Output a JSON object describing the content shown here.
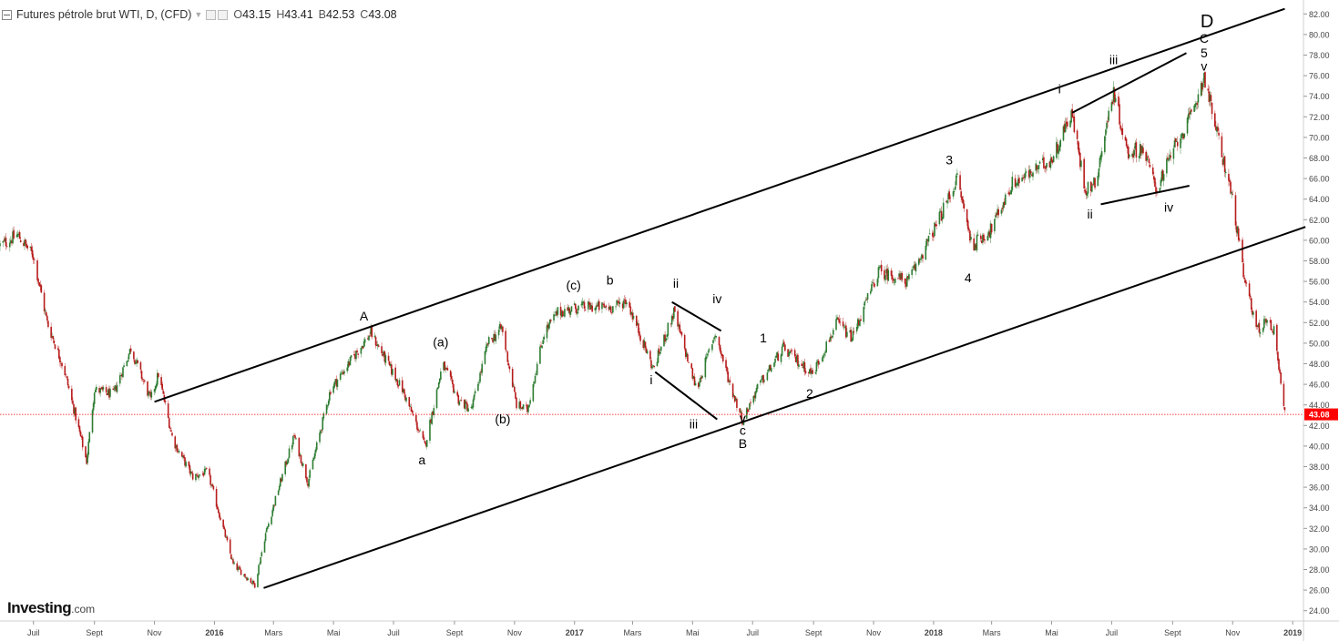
{
  "header": {
    "symbol_title": "Futures pétrole brut WTI, D, (CFD)",
    "ohlc": [
      {
        "key": "O",
        "value": "43.15"
      },
      {
        "key": "H",
        "value": "43.41"
      },
      {
        "key": "B",
        "value": "42.53"
      },
      {
        "key": "C",
        "value": "43.08"
      }
    ]
  },
  "logo": {
    "brand": "Investing",
    "suffix": ".com"
  },
  "colors": {
    "up_candle": "#2e7d32",
    "down_candle": "#b71c1c",
    "price_line": "#ff0000",
    "price_badge": "#ff0000",
    "trend_lines": "#000000",
    "axis_text": "#444444"
  },
  "chart_data": {
    "type": "candlestick",
    "instrument": "Futures pétrole brut WTI",
    "interval": "D",
    "y_axis": {
      "position": "right",
      "range": [
        23,
        83
      ],
      "ticks": [
        "24.00",
        "26.00",
        "28.00",
        "30.00",
        "32.00",
        "34.00",
        "36.00",
        "38.00",
        "40.00",
        "42.00",
        "44.00",
        "46.00",
        "48.00",
        "50.00",
        "52.00",
        "54.00",
        "56.00",
        "58.00",
        "60.00",
        "62.00",
        "64.00",
        "66.00",
        "68.00",
        "70.00",
        "72.00",
        "74.00",
        "76.00",
        "78.00",
        "80.00",
        "82.00"
      ]
    },
    "x_axis": {
      "range": [
        "2015-05-28",
        "2019-01-12"
      ],
      "ticks": [
        {
          "date": "2015-07-01",
          "label": "Juil"
        },
        {
          "date": "2015-09-01",
          "label": "Sept"
        },
        {
          "date": "2015-11-01",
          "label": "Nov"
        },
        {
          "date": "2016-01-01",
          "label": "2016"
        },
        {
          "date": "2016-03-01",
          "label": "Mars"
        },
        {
          "date": "2016-05-01",
          "label": "Mai"
        },
        {
          "date": "2016-07-01",
          "label": "Juil"
        },
        {
          "date": "2016-09-01",
          "label": "Sept"
        },
        {
          "date": "2016-11-01",
          "label": "Nov"
        },
        {
          "date": "2017-01-01",
          "label": "2017"
        },
        {
          "date": "2017-03-01",
          "label": "Mars"
        },
        {
          "date": "2017-05-01",
          "label": "Mai"
        },
        {
          "date": "2017-07-01",
          "label": "Juil"
        },
        {
          "date": "2017-09-01",
          "label": "Sept"
        },
        {
          "date": "2017-11-01",
          "label": "Nov"
        },
        {
          "date": "2018-01-01",
          "label": "2018"
        },
        {
          "date": "2018-03-01",
          "label": "Mars"
        },
        {
          "date": "2018-05-01",
          "label": "Mai"
        },
        {
          "date": "2018-07-01",
          "label": "Juil"
        },
        {
          "date": "2018-09-01",
          "label": "Sept"
        },
        {
          "date": "2018-11-01",
          "label": "Nov"
        },
        {
          "date": "2019-01-01",
          "label": "2019"
        }
      ]
    },
    "last_price": {
      "value": 43.08,
      "label": "43.08"
    },
    "price_path": [
      {
        "d": "2015-05-28",
        "p": 59.5
      },
      {
        "d": "2015-06-15",
        "p": 60.5
      },
      {
        "d": "2015-07-01",
        "p": 58.5
      },
      {
        "d": "2015-07-15",
        "p": 52.0
      },
      {
        "d": "2015-08-01",
        "p": 47.5
      },
      {
        "d": "2015-08-24",
        "p": 38.5
      },
      {
        "d": "2015-09-01",
        "p": 45.5
      },
      {
        "d": "2015-09-20",
        "p": 45.0
      },
      {
        "d": "2015-10-08",
        "p": 49.5
      },
      {
        "d": "2015-10-28",
        "p": 44.5
      },
      {
        "d": "2015-11-05",
        "p": 47.0
      },
      {
        "d": "2015-11-20",
        "p": 40.5
      },
      {
        "d": "2015-12-10",
        "p": 37.0
      },
      {
        "d": "2015-12-25",
        "p": 37.5
      },
      {
        "d": "2016-01-20",
        "p": 28.5
      },
      {
        "d": "2016-02-11",
        "p": 26.5
      },
      {
        "d": "2016-02-22",
        "p": 31.5
      },
      {
        "d": "2016-03-08",
        "p": 36.5
      },
      {
        "d": "2016-03-22",
        "p": 41.0
      },
      {
        "d": "2016-04-05",
        "p": 36.5
      },
      {
        "d": "2016-04-28",
        "p": 45.5
      },
      {
        "d": "2016-05-20",
        "p": 48.5
      },
      {
        "d": "2016-06-08",
        "p": 51.0
      },
      {
        "d": "2016-06-28",
        "p": 47.5
      },
      {
        "d": "2016-07-10",
        "p": 45.5
      },
      {
        "d": "2016-08-02",
        "p": 40.0
      },
      {
        "d": "2016-08-20",
        "p": 48.0
      },
      {
        "d": "2016-09-05",
        "p": 44.5
      },
      {
        "d": "2016-09-18",
        "p": 43.5
      },
      {
        "d": "2016-10-05",
        "p": 50.0
      },
      {
        "d": "2016-10-19",
        "p": 51.5
      },
      {
        "d": "2016-11-03",
        "p": 44.0
      },
      {
        "d": "2016-11-14",
        "p": 43.5
      },
      {
        "d": "2016-12-01",
        "p": 51.0
      },
      {
        "d": "2016-12-15",
        "p": 53.0
      },
      {
        "d": "2017-01-06",
        "p": 53.5
      },
      {
        "d": "2017-02-10",
        "p": 53.5
      },
      {
        "d": "2017-02-23",
        "p": 54.2
      },
      {
        "d": "2017-03-08",
        "p": 51.0
      },
      {
        "d": "2017-03-22",
        "p": 47.5
      },
      {
        "d": "2017-04-12",
        "p": 53.0
      },
      {
        "d": "2017-05-05",
        "p": 45.5
      },
      {
        "d": "2017-05-24",
        "p": 51.0
      },
      {
        "d": "2017-06-08",
        "p": 46.0
      },
      {
        "d": "2017-06-21",
        "p": 42.5
      },
      {
        "d": "2017-07-05",
        "p": 45.5
      },
      {
        "d": "2017-08-01",
        "p": 49.5
      },
      {
        "d": "2017-08-31",
        "p": 47.0
      },
      {
        "d": "2017-09-25",
        "p": 52.0
      },
      {
        "d": "2017-10-10",
        "p": 50.5
      },
      {
        "d": "2017-11-06",
        "p": 57.0
      },
      {
        "d": "2017-12-06",
        "p": 56.0
      },
      {
        "d": "2018-01-04",
        "p": 61.5
      },
      {
        "d": "2018-01-25",
        "p": 66.0
      },
      {
        "d": "2018-02-09",
        "p": 59.5
      },
      {
        "d": "2018-02-28",
        "p": 61.0
      },
      {
        "d": "2018-03-22",
        "p": 65.5
      },
      {
        "d": "2018-04-10",
        "p": 66.5
      },
      {
        "d": "2018-05-02",
        "p": 68.0
      },
      {
        "d": "2018-05-21",
        "p": 72.5
      },
      {
        "d": "2018-06-04",
        "p": 65.0
      },
      {
        "d": "2018-06-14",
        "p": 65.5
      },
      {
        "d": "2018-07-03",
        "p": 74.5
      },
      {
        "d": "2018-07-17",
        "p": 68.5
      },
      {
        "d": "2018-08-01",
        "p": 69.0
      },
      {
        "d": "2018-08-16",
        "p": 65.0
      },
      {
        "d": "2018-09-05",
        "p": 69.5
      },
      {
        "d": "2018-09-20",
        "p": 72.0
      },
      {
        "d": "2018-10-03",
        "p": 76.0
      },
      {
        "d": "2018-10-17",
        "p": 70.0
      },
      {
        "d": "2018-11-01",
        "p": 64.0
      },
      {
        "d": "2018-11-13",
        "p": 56.0
      },
      {
        "d": "2018-11-28",
        "p": 51.0
      },
      {
        "d": "2018-12-05",
        "p": 52.5
      },
      {
        "d": "2018-12-14",
        "p": 51.0
      },
      {
        "d": "2018-12-24",
        "p": 43.1
      }
    ],
    "trend_lines": [
      {
        "from": {
          "d": "2016-02-20",
          "p": 26.2
        },
        "to": {
          "d": "2019-01-14",
          "p": 61.3
        }
      },
      {
        "from": {
          "d": "2015-11-01",
          "p": 44.3
        },
        "to": {
          "d": "2018-12-24",
          "p": 82.5
        }
      },
      {
        "from": {
          "d": "2017-03-24",
          "p": 47.2
        },
        "to": {
          "d": "2017-05-26",
          "p": 42.6
        }
      },
      {
        "from": {
          "d": "2017-04-10",
          "p": 54.0
        },
        "to": {
          "d": "2017-05-30",
          "p": 51.2
        }
      },
      {
        "from": {
          "d": "2018-05-22",
          "p": 72.4
        },
        "to": {
          "d": "2018-09-15",
          "p": 78.2
        }
      },
      {
        "from": {
          "d": "2018-06-20",
          "p": 63.5
        },
        "to": {
          "d": "2018-09-18",
          "p": 65.3
        }
      }
    ],
    "annotations": [
      {
        "text": "A",
        "d": "2016-06-01",
        "p": 52.2
      },
      {
        "text": "(a)",
        "d": "2016-08-18",
        "p": 49.7
      },
      {
        "text": "a",
        "d": "2016-07-30",
        "p": 38.2
      },
      {
        "text": "(b)",
        "d": "2016-10-20",
        "p": 42.2
      },
      {
        "text": "(c)",
        "d": "2016-12-31",
        "p": 55.2
      },
      {
        "text": "b",
        "d": "2017-02-06",
        "p": 55.7
      },
      {
        "text": "ii",
        "d": "2017-04-14",
        "p": 55.4
      },
      {
        "text": "iv",
        "d": "2017-05-26",
        "p": 53.9
      },
      {
        "text": "i",
        "d": "2017-03-20",
        "p": 46.0
      },
      {
        "text": "iii",
        "d": "2017-05-02",
        "p": 41.7
      },
      {
        "text": "v",
        "d": "2017-06-21",
        "p": 42.3
      },
      {
        "text": "c",
        "d": "2017-06-21",
        "p": 41.1
      },
      {
        "text": "B",
        "d": "2017-06-21",
        "p": 39.8
      },
      {
        "text": "1",
        "d": "2017-07-12",
        "p": 50.1
      },
      {
        "text": "2",
        "d": "2017-08-28",
        "p": 44.7
      },
      {
        "text": "3",
        "d": "2018-01-17",
        "p": 67.4
      },
      {
        "text": "4",
        "d": "2018-02-05",
        "p": 55.9
      },
      {
        "text": "i",
        "d": "2018-05-09",
        "p": 74.3
      },
      {
        "text": "iii",
        "d": "2018-07-03",
        "p": 77.1
      },
      {
        "text": "ii",
        "d": "2018-06-09",
        "p": 62.1
      },
      {
        "text": "iv",
        "d": "2018-08-28",
        "p": 62.8
      },
      {
        "text": "v",
        "d": "2018-10-03",
        "p": 76.5
      },
      {
        "text": "5",
        "d": "2018-10-03",
        "p": 77.8
      },
      {
        "text": "C",
        "d": "2018-10-03",
        "p": 79.2
      },
      {
        "text": "D",
        "d": "2018-10-06",
        "p": 80.7
      }
    ]
  }
}
